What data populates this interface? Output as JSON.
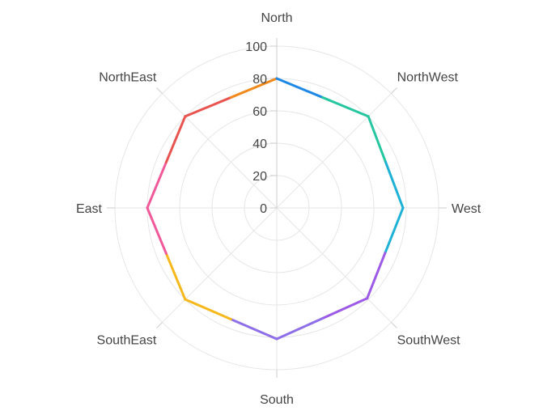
{
  "chart_data": {
    "type": "radar",
    "categories": [
      "North",
      "NorthWest",
      "West",
      "SouthWest",
      "South",
      "SouthEast",
      "East",
      "NorthEast"
    ],
    "values": [
      80,
      80,
      78,
      79,
      81,
      80,
      80,
      80
    ],
    "rlim": [
      0,
      100
    ],
    "rticks": [
      0,
      20,
      40,
      60,
      80,
      100
    ],
    "grid": true,
    "segment_colors": [
      "#1e88e5",
      "#26c6a0",
      "#1fb1d6",
      "#9c5ae6",
      "#8e6fe8",
      "#f5b81d",
      "#f05a9a",
      "#e8544f",
      "#f08a1c"
    ],
    "grid_color": "#e6e6e6",
    "axis_color": "#cccccc"
  }
}
